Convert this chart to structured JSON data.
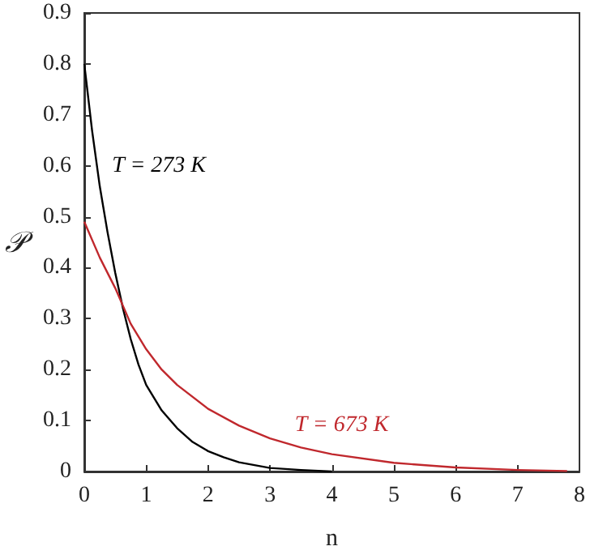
{
  "chart_data": {
    "type": "line",
    "xlabel": "n",
    "ylabel": "𝒫",
    "xlim": [
      0,
      8
    ],
    "xticks": [
      0,
      1,
      2,
      3,
      4,
      5,
      6,
      7,
      8
    ],
    "ylim": [
      0,
      0.9
    ],
    "yticks": [
      0,
      0.1,
      0.2,
      0.3,
      0.4,
      0.5,
      0.6,
      0.7,
      0.8,
      0.9
    ],
    "grid": false,
    "marker": "none",
    "line_style": "solid",
    "series": [
      {
        "color": "#000000",
        "x": [
          0,
          0.125,
          0.25,
          0.375,
          0.5,
          0.625,
          0.75,
          0.875,
          1,
          1.25,
          1.5,
          1.75,
          2,
          2.25,
          2.5,
          3,
          3.5,
          4
        ],
        "values": [
          0.8,
          0.67,
          0.56,
          0.47,
          0.39,
          0.32,
          0.26,
          0.21,
          0.17,
          0.12,
          0.085,
          0.058,
          0.04,
          0.028,
          0.018,
          0.007,
          0.003,
          0
        ]
      },
      {
        "color": "#c0282d",
        "x": [
          0,
          0.25,
          0.5,
          0.75,
          1,
          1.25,
          1.5,
          2,
          2.5,
          3,
          3.5,
          4,
          5,
          6,
          7,
          7.8
        ],
        "values": [
          0.49,
          0.42,
          0.36,
          0.29,
          0.24,
          0.2,
          0.17,
          0.123,
          0.09,
          0.065,
          0.047,
          0.034,
          0.017,
          0.008,
          0.003,
          0.001
        ]
      }
    ],
    "annotations": [
      "T = 273 K",
      "T = 673 K"
    ]
  }
}
